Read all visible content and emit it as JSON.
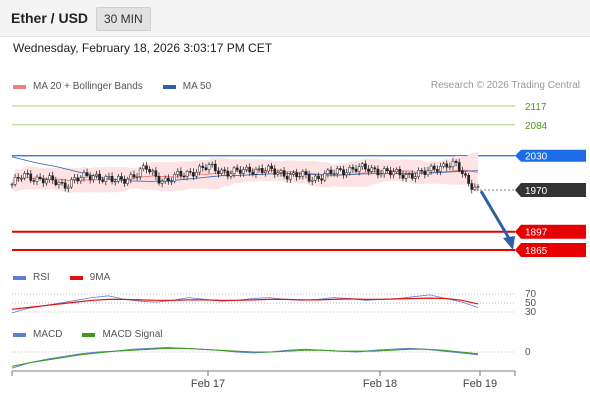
{
  "header": {
    "pair": "Ether / USD",
    "interval": "30 MIN"
  },
  "datetime": "Wednesday, February 18, 2026 3:03:17 PM CET",
  "legend_main": [
    {
      "label": "MA 20 + Bollinger Bands",
      "color": "#f08080"
    },
    {
      "label": "MA 50",
      "color": "#2d5fa8"
    }
  ],
  "credit": "Research © 2026 Trading Central",
  "legend_rsi": [
    {
      "label": "RSI",
      "color": "#5b7fd6"
    },
    {
      "label": "9MA",
      "color": "#e01010"
    }
  ],
  "legend_macd": [
    {
      "label": "MACD",
      "color": "#5b7fd6"
    },
    {
      "label": "MACD Signal",
      "color": "#3a9a1a"
    }
  ],
  "colors": {
    "resistance": "#1e6be8",
    "target": "#e60000",
    "pivot_line": "#8bc34a",
    "current": "#333333"
  },
  "chart_data": [
    {
      "type": "candlestick",
      "title": "Ether / USD",
      "ylim": [
        1855,
        2140
      ],
      "levels": [
        {
          "value": 2117,
          "label": "2117",
          "kind": "resistance-2"
        },
        {
          "value": 2084,
          "label": "2084",
          "kind": "resistance-1"
        },
        {
          "value": 2030,
          "label": "2030",
          "kind": "pivot"
        },
        {
          "value": 1970,
          "label": "1970",
          "kind": "last-price"
        },
        {
          "value": 1897,
          "label": "1897",
          "kind": "target-1"
        },
        {
          "value": 1865,
          "label": "1865",
          "kind": "target-2"
        }
      ],
      "close_anchors": [
        1980,
        1995,
        1992,
        1988,
        1985,
        1978,
        1988,
        1992,
        1996,
        1990,
        1985,
        1990,
        1998,
        2008,
        1992,
        1985,
        1995,
        2000,
        2005,
        2010,
        2005,
        2000,
        2002,
        2006,
        2005,
        2003,
        2000,
        1995,
        1995,
        1990,
        1995,
        2000,
        2004,
        2008,
        2007,
        2005,
        2003,
        1998,
        1996,
        1998,
        2000,
        2010,
        2015,
        2012,
        1985,
        1972
      ],
      "ma50": [
        2028,
        2018,
        2010,
        2000,
        1990,
        1986,
        1985,
        1987,
        1991,
        1995,
        1996,
        1998,
        1999,
        1997,
        1996,
        1998,
        1999,
        1999,
        2000,
        2002,
        2004
      ],
      "arrow": {
        "from": 1968,
        "to": 1865
      },
      "xaxis_labels": [
        "Feb 17",
        "Feb 18",
        "Feb 19"
      ]
    },
    {
      "type": "line",
      "title": "RSI",
      "levels": [
        70,
        50,
        30
      ],
      "series": [
        {
          "name": "RSI",
          "values": [
            28,
            38,
            44,
            50,
            56,
            62,
            66,
            58,
            54,
            52,
            56,
            62,
            58,
            54,
            56,
            60,
            62,
            58,
            56,
            58,
            62,
            60,
            56,
            58,
            60,
            64,
            68,
            60,
            52,
            40
          ]
        },
        {
          "name": "9MA",
          "values": [
            36,
            40,
            44,
            48,
            52,
            56,
            58,
            58,
            57,
            56,
            56,
            57,
            57,
            56,
            56,
            57,
            58,
            58,
            57,
            57,
            58,
            59,
            58,
            58,
            59,
            60,
            61,
            60,
            56,
            48
          ]
        }
      ]
    },
    {
      "type": "line",
      "title": "MACD",
      "levels": [
        0
      ],
      "series": [
        {
          "name": "MACD",
          "values": [
            -18,
            -12,
            -8,
            -5,
            -2,
            0,
            1,
            3,
            4,
            5,
            4,
            3,
            2,
            0,
            -1,
            0,
            2,
            3,
            2,
            1,
            0,
            2,
            3,
            4,
            3,
            1,
            -1,
            -3
          ]
        },
        {
          "name": "MACD Signal",
          "values": [
            -16,
            -12,
            -9,
            -6,
            -3,
            -1,
            1,
            2,
            3,
            4,
            4,
            3,
            2,
            1,
            0,
            0,
            1,
            2,
            2,
            1,
            1,
            1,
            2,
            3,
            3,
            2,
            0,
            -2
          ]
        }
      ]
    }
  ]
}
